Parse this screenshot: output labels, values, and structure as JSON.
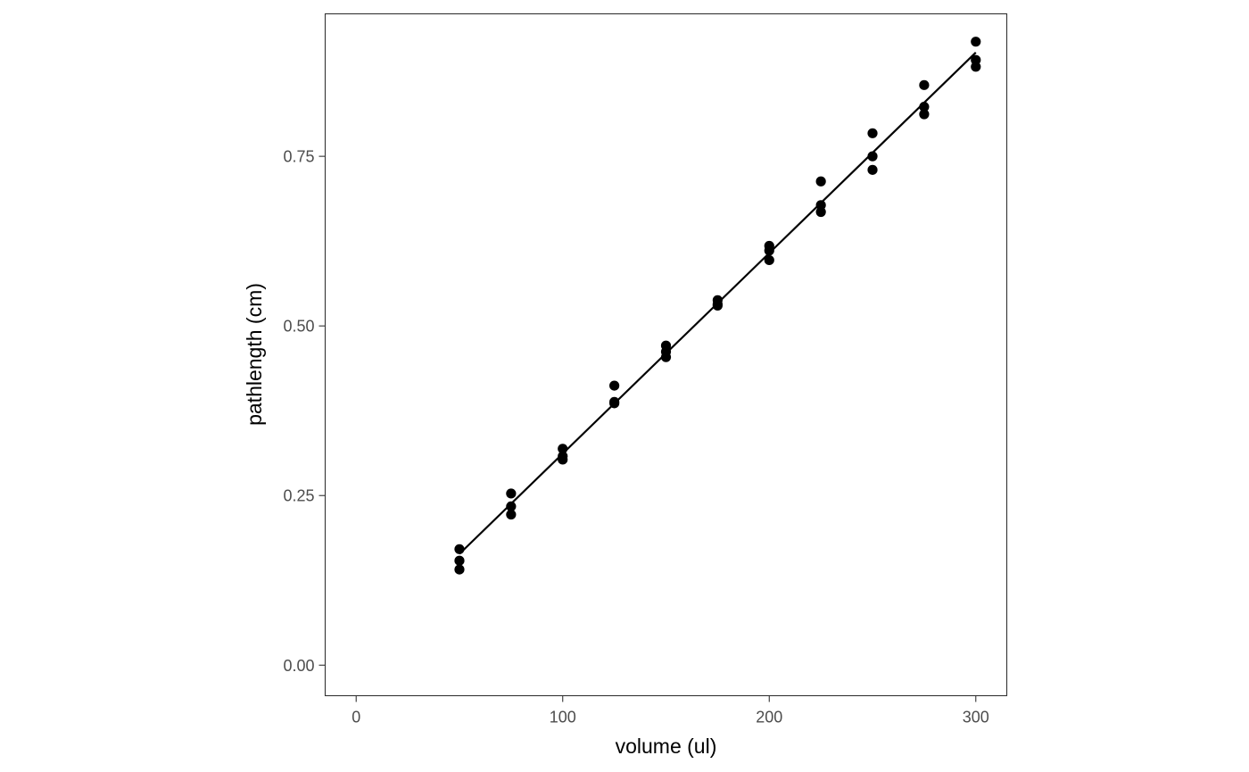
{
  "colors": {
    "background": "#ffffff",
    "panel_border": "#333333",
    "points": "#000000",
    "fit_line": "#000000",
    "tick_label": "#4d4d4d",
    "axis_title": "#000000"
  },
  "chart_data": {
    "type": "scatter",
    "title": "",
    "xlabel": "volume (ul)",
    "ylabel": "pathlength (cm)",
    "xlim": [
      -15,
      315
    ],
    "ylim": [
      -0.045,
      0.96
    ],
    "xticks": [
      0,
      100,
      200,
      300
    ],
    "xtick_labels": [
      "0",
      "100",
      "200",
      "300"
    ],
    "yticks": [
      0.0,
      0.25,
      0.5,
      0.75
    ],
    "ytick_labels": [
      "0.00",
      "0.25",
      "0.50",
      "0.75"
    ],
    "grid": false,
    "legend": "none",
    "points": [
      {
        "x": 50,
        "y": 0.171
      },
      {
        "x": 50,
        "y": 0.154
      },
      {
        "x": 50,
        "y": 0.141
      },
      {
        "x": 75,
        "y": 0.253
      },
      {
        "x": 75,
        "y": 0.234
      },
      {
        "x": 75,
        "y": 0.222
      },
      {
        "x": 100,
        "y": 0.319
      },
      {
        "x": 100,
        "y": 0.308
      },
      {
        "x": 100,
        "y": 0.303
      },
      {
        "x": 125,
        "y": 0.412
      },
      {
        "x": 125,
        "y": 0.388
      },
      {
        "x": 125,
        "y": 0.386
      },
      {
        "x": 150,
        "y": 0.471
      },
      {
        "x": 150,
        "y": 0.462
      },
      {
        "x": 150,
        "y": 0.454
      },
      {
        "x": 175,
        "y": 0.538
      },
      {
        "x": 175,
        "y": 0.532
      },
      {
        "x": 175,
        "y": 0.53
      },
      {
        "x": 200,
        "y": 0.618
      },
      {
        "x": 200,
        "y": 0.611
      },
      {
        "x": 200,
        "y": 0.597
      },
      {
        "x": 225,
        "y": 0.713
      },
      {
        "x": 225,
        "y": 0.678
      },
      {
        "x": 225,
        "y": 0.668
      },
      {
        "x": 250,
        "y": 0.784
      },
      {
        "x": 250,
        "y": 0.75
      },
      {
        "x": 250,
        "y": 0.73
      },
      {
        "x": 275,
        "y": 0.855
      },
      {
        "x": 275,
        "y": 0.823
      },
      {
        "x": 275,
        "y": 0.812
      },
      {
        "x": 300,
        "y": 0.919
      },
      {
        "x": 300,
        "y": 0.892
      },
      {
        "x": 300,
        "y": 0.882
      }
    ],
    "fit_line": {
      "type": "linear",
      "x": [
        50,
        300
      ],
      "y": [
        0.164,
        0.903
      ]
    }
  }
}
